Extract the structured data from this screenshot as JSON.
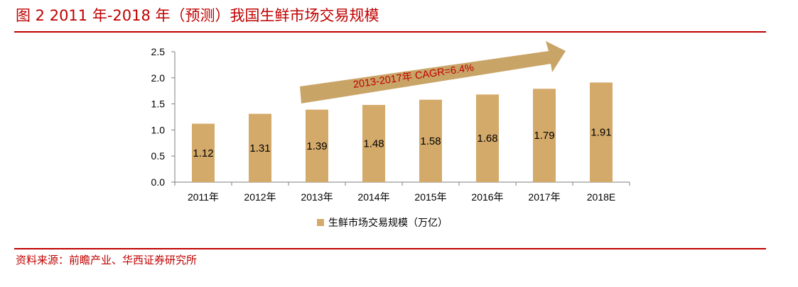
{
  "title": "图 2 2011 年-2018 年（预测）我国生鲜市场交易规模",
  "source": "资料来源：前瞻产业、华西证券研究所",
  "colors": {
    "accent": "#c00000",
    "bar": "#d4aa6a",
    "arrow": "#c9a467",
    "annotation_text": "#c00000"
  },
  "chart_data": {
    "type": "bar",
    "categories": [
      "2011年",
      "2012年",
      "2013年",
      "2014年",
      "2015年",
      "2016年",
      "2017年",
      "2018E"
    ],
    "series": [
      {
        "name": "生鲜市场交易规模（万亿）",
        "values": [
          1.12,
          1.31,
          1.39,
          1.48,
          1.58,
          1.68,
          1.79,
          1.91
        ]
      }
    ],
    "data_labels": [
      "1.12",
      "1.31",
      "1.39",
      "1.48",
      "1.58",
      "1.68",
      "1.79",
      "1.91"
    ],
    "ylim": [
      0,
      2.5
    ],
    "yticks": [
      0.0,
      0.5,
      1.0,
      1.5,
      2.0,
      2.5
    ],
    "ytick_labels": [
      "0.0",
      "0.5",
      "1.0",
      "1.5",
      "2.0",
      "2.5"
    ],
    "grid": false,
    "legend": "bottom",
    "annotation": "2013-2017年 CAGR=6.4%"
  }
}
